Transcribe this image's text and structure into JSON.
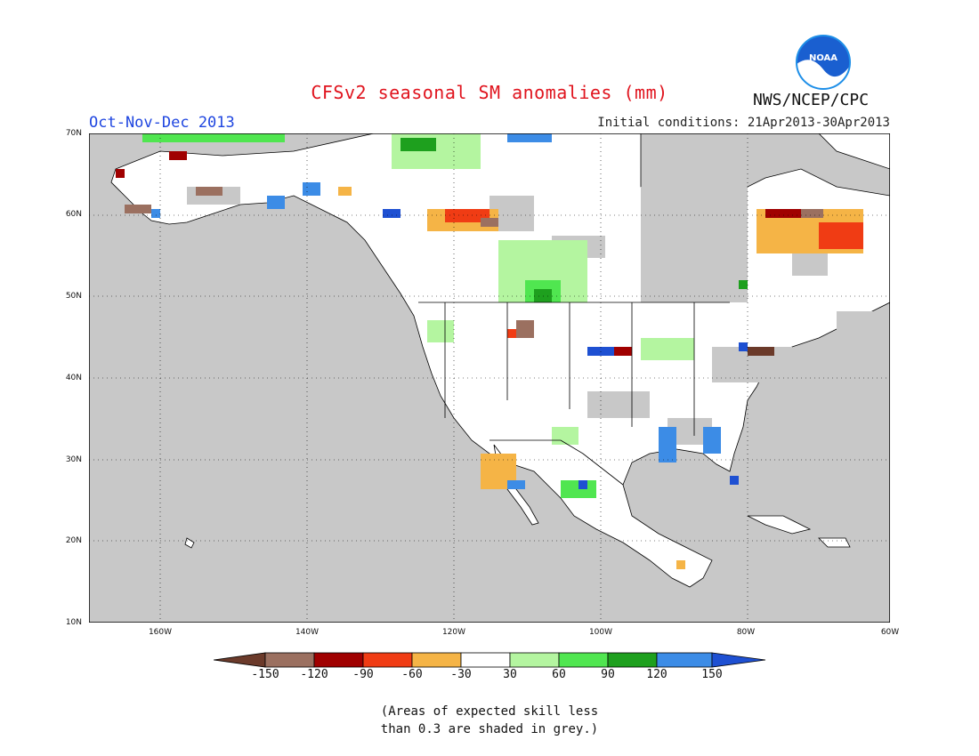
{
  "title": "CFSv2 seasonal SM anomalies (mm)",
  "season": "Oct-Nov-Dec 2013",
  "initial_conditions": "Initial conditions: 21Apr2013-30Apr2013",
  "agency": "NWS/NCEP/CPC",
  "logo_text": "NOAA",
  "latitude_labels": [
    "70N",
    "60N",
    "50N",
    "40N",
    "30N",
    "20N",
    "10N"
  ],
  "longitude_labels": [
    "160W",
    "140W",
    "120W",
    "100W",
    "80W",
    "60W"
  ],
  "colorbar": {
    "labels": [
      "-150",
      "-120",
      "-90",
      "-60",
      "-30",
      "30",
      "60",
      "90",
      "120",
      "150"
    ],
    "colors": [
      "#6b3a2a",
      "#9b7060",
      "#a00000",
      "#f03c14",
      "#f5b446",
      "#ffffff",
      "#b4f5a0",
      "#50e650",
      "#1ea01e",
      "#3c8ce6",
      "#1e50d2"
    ]
  },
  "footnote": {
    "line1": "(Areas of expected skill less",
    "line2": "than 0.3 are shaded in grey.)"
  },
  "map_colors": {
    "ocean": "#c8c8c8",
    "land": "#ffffff",
    "border": "#000000"
  }
}
